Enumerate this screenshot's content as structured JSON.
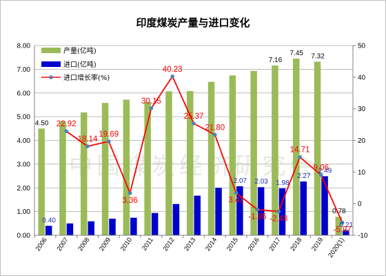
{
  "chart_data": {
    "type": "bar",
    "title": "印度煤炭产量与进口变化",
    "categories": [
      "2006",
      "2007",
      "2008",
      "2009",
      "2010",
      "2011",
      "2012",
      "2013",
      "2014",
      "2015",
      "2016",
      "2017",
      "2018",
      "2019",
      "2020(1)"
    ],
    "series": [
      {
        "name": "产量(亿吨)",
        "type": "bar",
        "axis": "left",
        "color": "#9bbb59",
        "values": [
          4.5,
          4.8,
          5.18,
          5.58,
          5.72,
          5.62,
          6.07,
          6.08,
          6.47,
          6.74,
          6.93,
          7.16,
          7.45,
          7.32,
          0.78
        ],
        "data_labels": [
          "4.50",
          "",
          "",
          "",
          "",
          "",
          "",
          "",
          "",
          "",
          "",
          "7.16",
          "7.45",
          "7.32",
          "0.78"
        ]
      },
      {
        "name": "进口(亿吨)",
        "type": "bar",
        "axis": "left",
        "color": "#0000cc",
        "values": [
          0.4,
          0.5,
          0.59,
          0.7,
          0.74,
          0.94,
          1.32,
          1.67,
          2.0,
          2.07,
          2.03,
          1.98,
          2.27,
          2.49,
          0.21
        ],
        "data_labels": [
          "0.40",
          "",
          "",
          "",
          "",
          "",
          "",
          "",
          "",
          "2.07",
          "2.03",
          "1.98",
          "2.27",
          "2.49",
          "0.21"
        ]
      },
      {
        "name": "进口增长率(%)",
        "type": "line",
        "axis": "right",
        "color": "#ff0000",
        "marker_color": "#4f81bd",
        "values": [
          null,
          22.92,
          18.14,
          19.69,
          3.36,
          30.15,
          40.23,
          25.37,
          21.8,
          3.41,
          -1.86,
          -2.48,
          14.71,
          9.06,
          -5.97
        ],
        "data_labels": [
          "",
          "22.92",
          "18.14",
          "19.69",
          "3.36",
          "30.15",
          "40.23",
          "25.37",
          "21.80",
          "3.41",
          "-1.86",
          "-2.48",
          "14.71",
          "9.06",
          "-5.97"
        ]
      }
    ],
    "left_axis": {
      "min": 0,
      "max": 8,
      "step": 1,
      "tick_labels": [
        "0.00",
        "1.00",
        "2.00",
        "3.00",
        "4.00",
        "5.00",
        "6.00",
        "7.00",
        "8.00"
      ]
    },
    "right_axis": {
      "min": -10,
      "max": 50,
      "step": 10,
      "tick_labels": [
        "-10",
        "0",
        "10",
        "20",
        "30",
        "40",
        "50"
      ]
    },
    "grid": true,
    "legend_position": "top-left",
    "watermark": "中国煤炭经济研究会"
  }
}
